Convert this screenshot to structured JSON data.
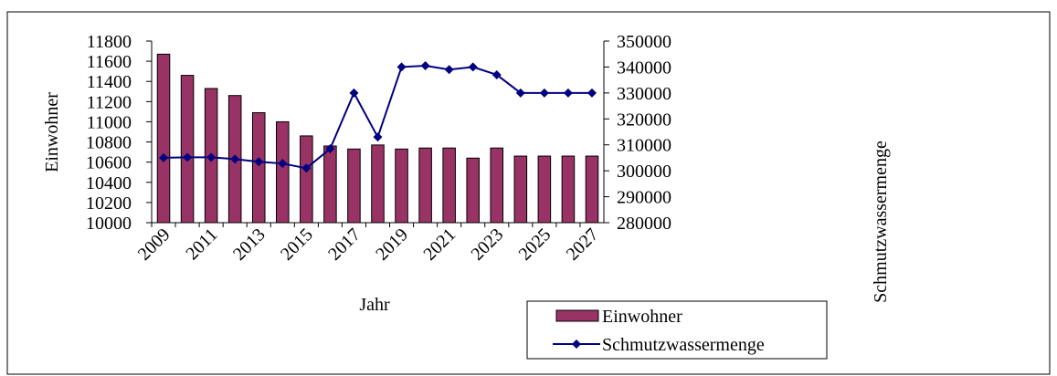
{
  "chart_data": {
    "type": "bar_line",
    "x_label": "Jahr",
    "y_label": "Einwohner",
    "y2_label": "Schmutzwassermenge",
    "categories": [
      "2009",
      null,
      "2011",
      null,
      "2013",
      null,
      "2015",
      null,
      "2017",
      null,
      "2019",
      null,
      "2021",
      null,
      "2023",
      null,
      "2025",
      null,
      "2027"
    ],
    "series": [
      {
        "name": "Einwohner",
        "type": "bar",
        "color": "#993366",
        "values": [
          11670,
          11460,
          11330,
          11260,
          11090,
          11000,
          10860,
          10760,
          10730,
          10770,
          10730,
          10740,
          10740,
          10640,
          10740,
          10660,
          10660,
          10660,
          10660
        ]
      },
      {
        "name": "Schmutzwassermenge",
        "type": "line",
        "axis": "y2",
        "color": "#000080",
        "values": [
          305000,
          305200,
          305200,
          304500,
          303500,
          302800,
          301000,
          308500,
          330000,
          313000,
          340000,
          340500,
          339000,
          340000,
          337000,
          330000,
          330000,
          330000,
          330000
        ]
      }
    ],
    "ylim": [
      10000,
      11800
    ],
    "yticks": [
      10000,
      10200,
      10400,
      10600,
      10800,
      11000,
      11200,
      11400,
      11600,
      11800
    ],
    "y2lim": [
      280000,
      350000
    ],
    "y2ticks": [
      280000,
      290000,
      300000,
      310000,
      320000,
      330000,
      340000,
      350000
    ],
    "legend": "bottom-right"
  }
}
